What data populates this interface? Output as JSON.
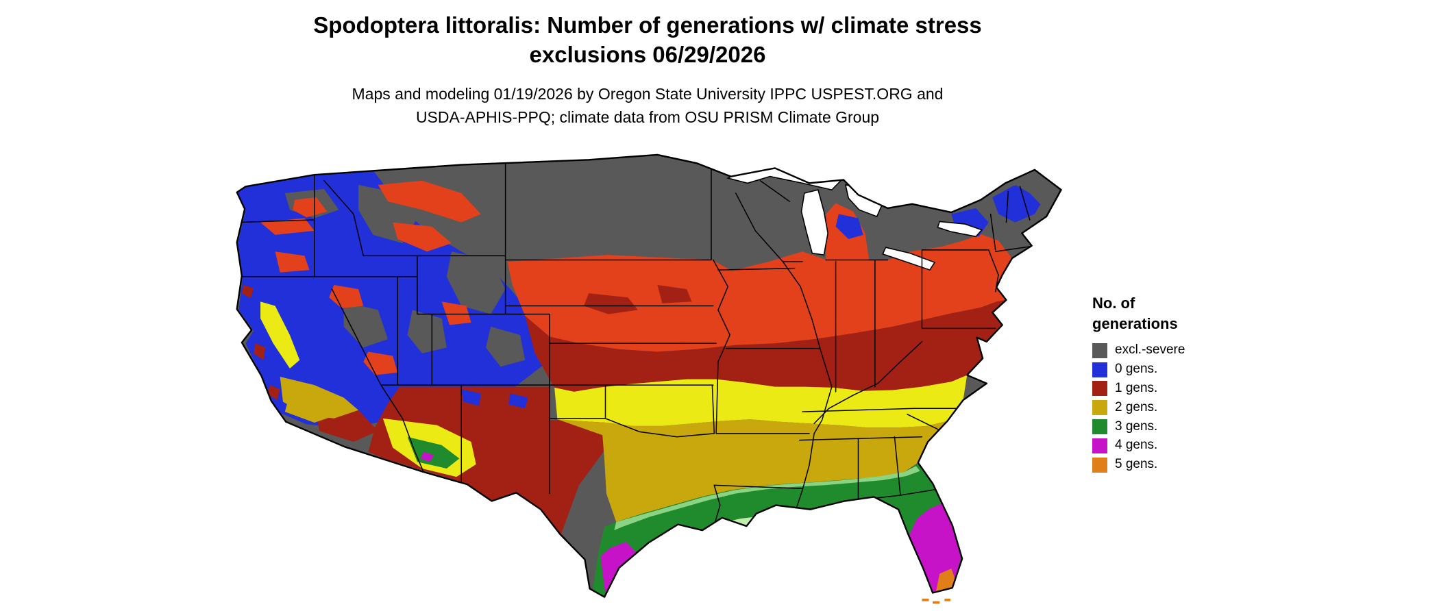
{
  "title": {
    "line1": "Spodoptera littoralis: Number of generations w/ climate stress",
    "line2": "exclusions 06/29/2026"
  },
  "subtitle": {
    "line1": "Maps and modeling 01/19/2026 by Oregon State University IPPC USPEST.ORG and",
    "line2": "USDA-APHIS-PPQ; climate data from OSU PRISM Climate Group"
  },
  "legend": {
    "title_line1": "No. of",
    "title_line2": "generations",
    "items": [
      {
        "label": "excl.-severe",
        "color": "#595959"
      },
      {
        "label": "0 gens.",
        "color": "#2130d8"
      },
      {
        "label": "1 gens.",
        "color": "#a32015"
      },
      {
        "label": "2 gens.",
        "color": "#c8a80d"
      },
      {
        "label": "3 gens.",
        "color": "#1f8b2c"
      },
      {
        "label": "4 gens.",
        "color": "#c713c7"
      },
      {
        "label": "5 gens.",
        "color": "#e07e17"
      }
    ]
  },
  "map": {
    "shades": {
      "orange_red": "#e2411b",
      "bright_yellow": "#ecea14",
      "light_green": "#8ad483",
      "pale_green": "#c2ecae"
    },
    "background": "#ffffff",
    "border_color": "#000000"
  }
}
